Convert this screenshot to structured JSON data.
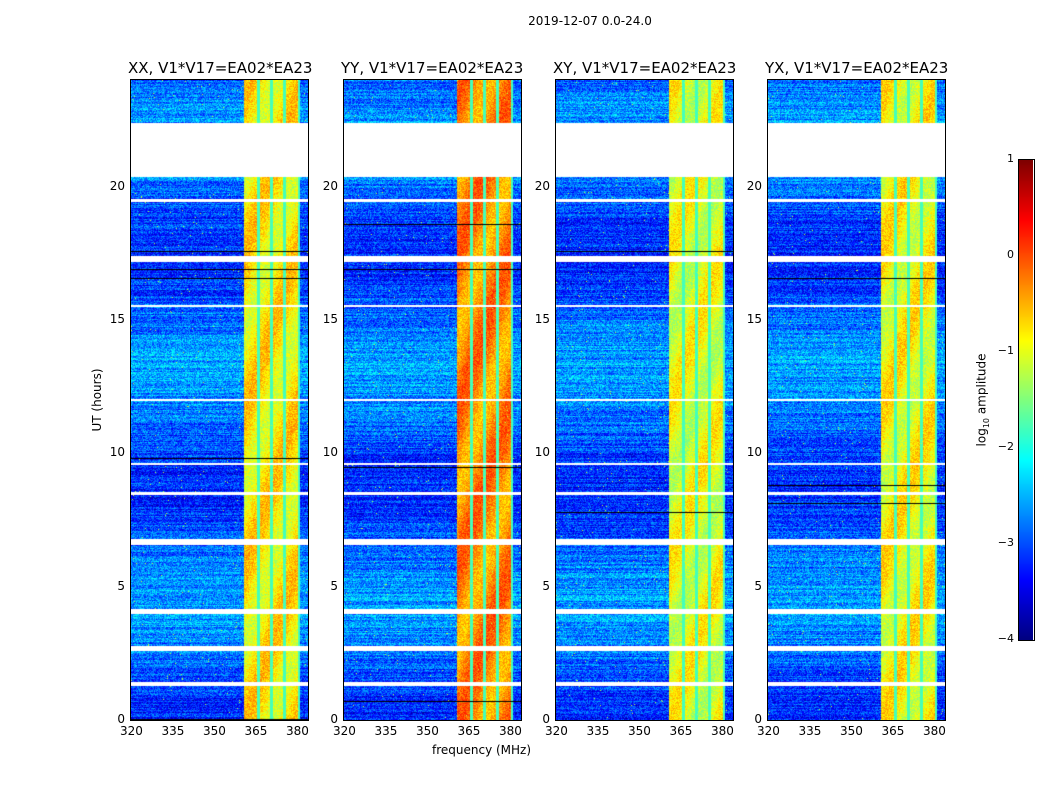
{
  "chart_data": {
    "type": "heatmap",
    "title": "2019-12-07 0.0-24.0",
    "xlabel": "frequency (MHz)",
    "ylabel": "UT (hours)",
    "xlim": [
      320,
      384
    ],
    "ylim": [
      0,
      24
    ],
    "xticks": [
      "320",
      "335",
      "350",
      "365",
      "380"
    ],
    "xtick_values": [
      320,
      335,
      350,
      365,
      380
    ],
    "yticks": [
      "0",
      "5",
      "10",
      "15",
      "20"
    ],
    "ytick_values": [
      0,
      5,
      10,
      15,
      20
    ],
    "panels": [
      {
        "title": "XX, V1*V17=EA02*EA23",
        "band_level": -0.8
      },
      {
        "title": "YY, V1*V17=EA02*EA23",
        "band_level": -0.3
      },
      {
        "title": "XY, V1*V17=EA02*EA23",
        "band_level": -1.0
      },
      {
        "title": "YX, V1*V17=EA02*EA23",
        "band_level": -0.9
      }
    ],
    "missing_time_ranges": [
      [
        20.4,
        22.4
      ],
      [
        19.45,
        19.55
      ],
      [
        17.2,
        17.4
      ],
      [
        15.5,
        15.6
      ],
      [
        8.45,
        8.55
      ],
      [
        6.6,
        6.8
      ],
      [
        4.0,
        4.2
      ],
      [
        2.6,
        2.8
      ],
      [
        1.3,
        1.45
      ],
      [
        12.0,
        12.05
      ],
      [
        9.6,
        9.65
      ]
    ],
    "rfi_band_mhz": [
      360.5,
      380.8
    ],
    "rfi_gap_channels_mhz": [
      365.8,
      370.6,
      375.2,
      380.8
    ],
    "background_level": -2.9,
    "colorbar": {
      "label": "log10 amplitude",
      "label_main": "log",
      "label_sub": "10",
      "label_rest": " amplitude",
      "ticks": [
        "1",
        "0",
        "−1",
        "−2",
        "−3",
        "−4"
      ],
      "tick_values": [
        1,
        0,
        -1,
        -2,
        -3,
        -4
      ],
      "range": [
        -4,
        1
      ],
      "colormap": "jet"
    }
  }
}
